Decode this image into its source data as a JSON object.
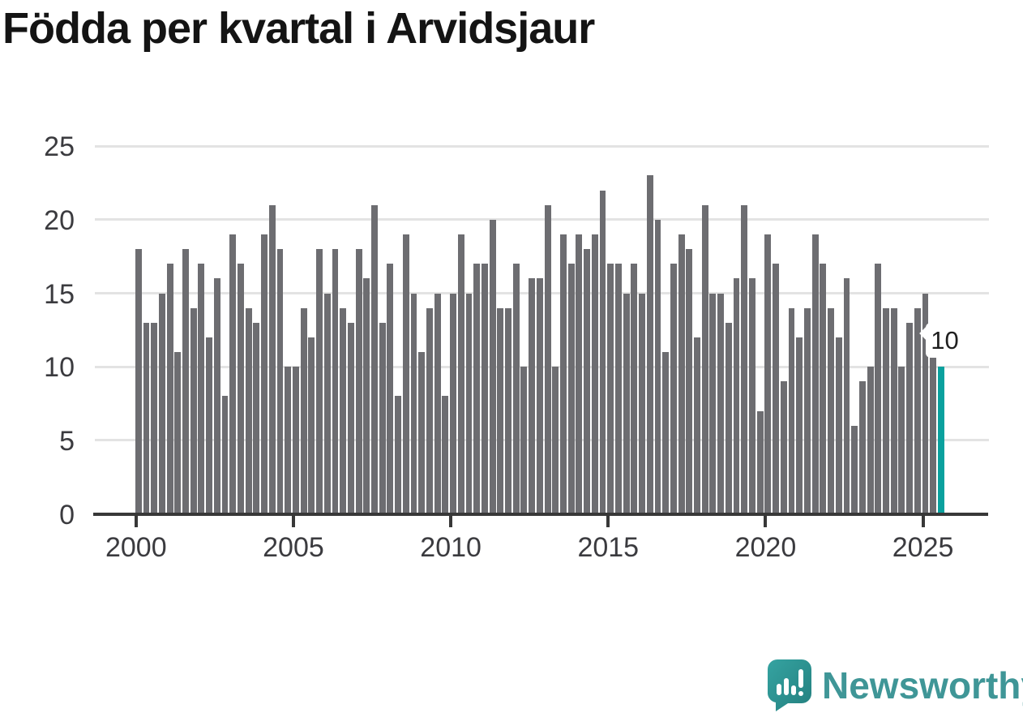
{
  "title": "Födda per kvartal i Arvidsjaur",
  "annotation": {
    "label": "10"
  },
  "logo": {
    "text": "Newsworthy",
    "icon": "newsworthy-speech-bubble-chart-icon"
  },
  "colors": {
    "bar": "#6d6d71",
    "highlight": "#0aa19e",
    "axis": "#383838",
    "grid": "#e3e3e3",
    "tick_label": "#3b3b3f",
    "title": "#141414",
    "annotation_bg": "#ffffff",
    "annotation_text": "#1f1f1f",
    "logo_text": "#3f9697",
    "logo_icon_dark": "#24807f",
    "logo_icon_light": "#35a3a1"
  },
  "chart_data": {
    "type": "bar",
    "title": "Födda per kvartal i Arvidsjaur",
    "frequency": "quarterly",
    "x_start": "2000-Q1",
    "x_end": "2025-Q3",
    "values": [
      18,
      13,
      13,
      15,
      17,
      11,
      18,
      14,
      17,
      12,
      16,
      8,
      19,
      17,
      14,
      13,
      19,
      21,
      18,
      10,
      10,
      14,
      12,
      18,
      15,
      18,
      14,
      13,
      18,
      16,
      21,
      13,
      17,
      8,
      19,
      15,
      11,
      14,
      15,
      8,
      15,
      19,
      15,
      17,
      17,
      20,
      14,
      14,
      17,
      10,
      16,
      16,
      21,
      10,
      19,
      17,
      19,
      18,
      19,
      22,
      17,
      17,
      15,
      17,
      15,
      23,
      20,
      11,
      17,
      19,
      18,
      12,
      21,
      15,
      15,
      13,
      16,
      21,
      16,
      7,
      19,
      17,
      9,
      14,
      12,
      14,
      19,
      17,
      14,
      12,
      16,
      6,
      9,
      10,
      17,
      14,
      14,
      10,
      13,
      14,
      15,
      11,
      10
    ],
    "years": [
      2000,
      2000,
      2000,
      2000,
      2001,
      2001,
      2001,
      2001,
      2002,
      2002,
      2002,
      2002,
      2003,
      2003,
      2003,
      2003,
      2004,
      2004,
      2004,
      2004,
      2005,
      2005,
      2005,
      2005,
      2006,
      2006,
      2006,
      2006,
      2007,
      2007,
      2007,
      2007,
      2008,
      2008,
      2008,
      2008,
      2009,
      2009,
      2009,
      2009,
      2010,
      2010,
      2010,
      2010,
      2011,
      2011,
      2011,
      2011,
      2012,
      2012,
      2012,
      2012,
      2013,
      2013,
      2013,
      2013,
      2014,
      2014,
      2014,
      2014,
      2015,
      2015,
      2015,
      2015,
      2016,
      2016,
      2016,
      2016,
      2017,
      2017,
      2017,
      2017,
      2018,
      2018,
      2018,
      2018,
      2019,
      2019,
      2019,
      2019,
      2020,
      2020,
      2020,
      2020,
      2021,
      2021,
      2021,
      2021,
      2022,
      2022,
      2022,
      2022,
      2023,
      2023,
      2023,
      2023,
      2024,
      2024,
      2024,
      2024,
      2025,
      2025,
      2025
    ],
    "highlight_last": true,
    "last_value_label": "10",
    "xticks": [
      "2000",
      "2005",
      "2010",
      "2015",
      "2020",
      "2025"
    ],
    "yticks": [
      0,
      5,
      10,
      15,
      20,
      25
    ],
    "ylim": [
      0,
      25
    ],
    "grid": "horizontal",
    "legend": "none"
  }
}
